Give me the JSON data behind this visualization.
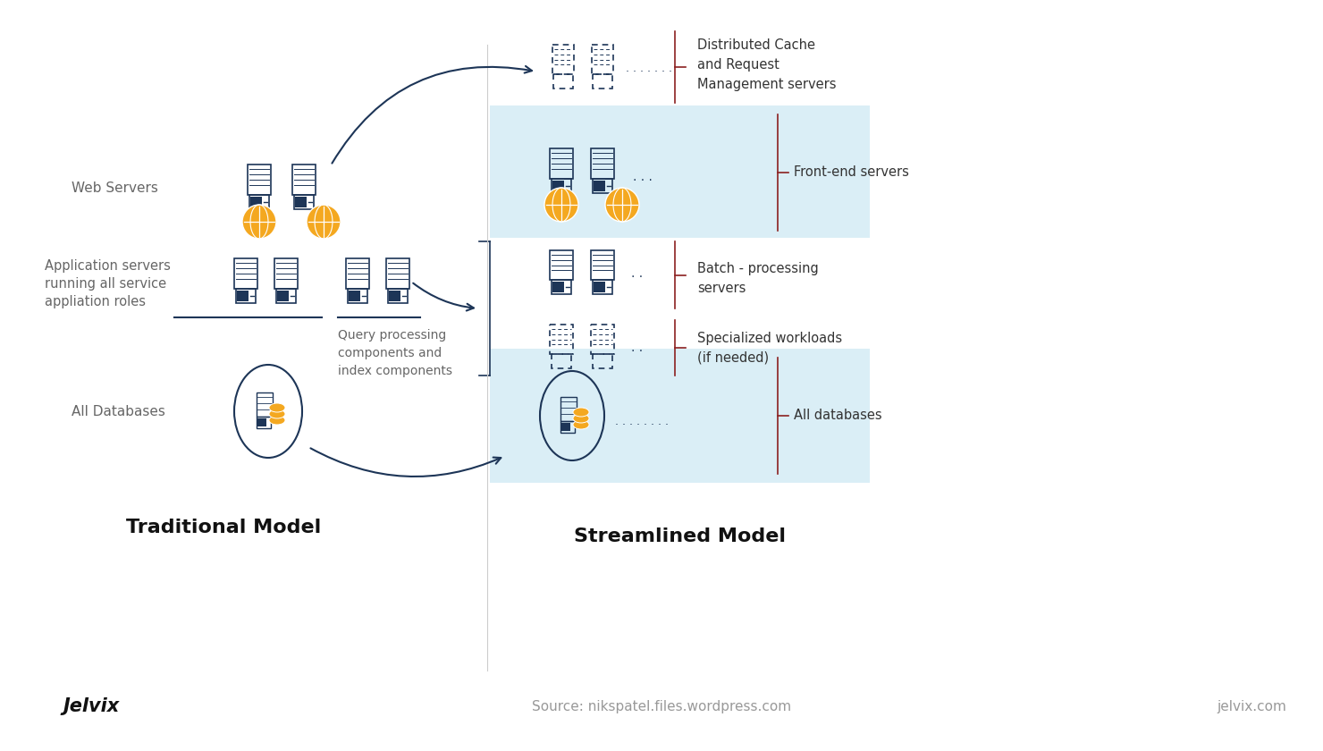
{
  "bg_color": "#ffffff",
  "title_left": "Traditional Model",
  "title_right": "Streamlined Model",
  "footer_brand": "Jelvix",
  "footer_source": "Source: nikspatel.files.wordpress.com",
  "footer_website": "jelvix.com",
  "server_color": "#1d3557",
  "globe_color": "#f4a820",
  "label_color": "#666666",
  "arrow_color": "#1d3557",
  "bracket_color": "#8b2020",
  "highlight_color": "#daeef6",
  "sep_color": "#cccccc"
}
